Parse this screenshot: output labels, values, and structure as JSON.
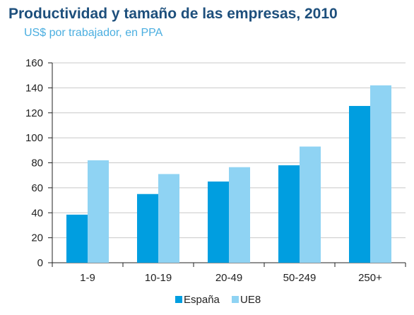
{
  "title": "Productividad y tamaño de las empresas, 2010",
  "subtitle": "US$ por trabajador, en PPA",
  "chart_data": {
    "type": "bar",
    "categories": [
      "1-9",
      "10-19",
      "20-49",
      "50-249",
      "250+"
    ],
    "series": [
      {
        "name": "España",
        "values": [
          38.5,
          55,
          65,
          78,
          125.5
        ],
        "color": "#009ee0"
      },
      {
        "name": "UE8",
        "values": [
          82,
          71,
          76.5,
          93,
          142
        ],
        "color": "#8fd3f3"
      }
    ],
    "ylim": [
      0,
      160
    ],
    "yticks": [
      0,
      20,
      40,
      60,
      80,
      100,
      120,
      140,
      160
    ],
    "grid": true,
    "legend": "bottom-center"
  }
}
